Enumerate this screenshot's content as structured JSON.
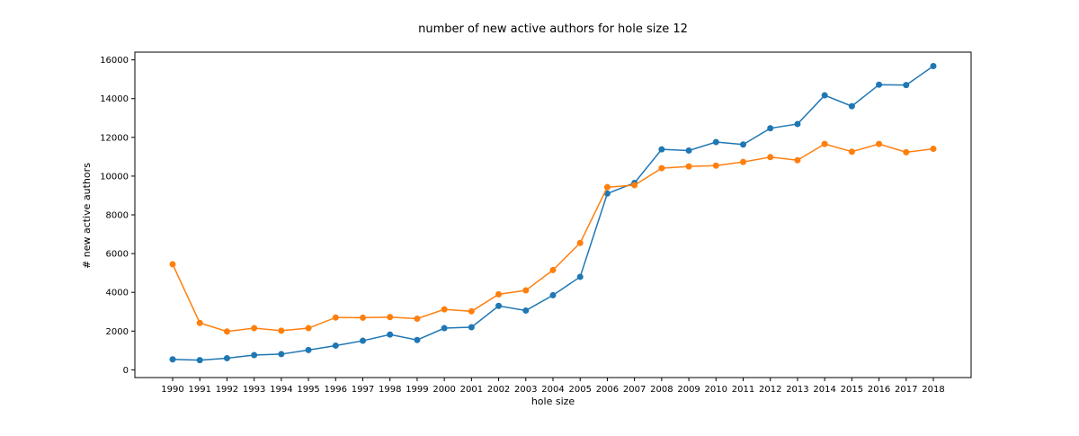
{
  "chart_data": {
    "type": "line",
    "title": "number of new active authors for hole size 12",
    "xlabel": "hole size",
    "ylabel": "# new active authors",
    "categories": [
      "1990",
      "1991",
      "1992",
      "1993",
      "1994",
      "1995",
      "1996",
      "1997",
      "1998",
      "1999",
      "2000",
      "2001",
      "2002",
      "2003",
      "2004",
      "2005",
      "2006",
      "2007",
      "2008",
      "2009",
      "2010",
      "2011",
      "2012",
      "2013",
      "2014",
      "2015",
      "2016",
      "2017",
      "2018"
    ],
    "yticks": [
      "0",
      "2000",
      "4000",
      "6000",
      "8000",
      "10000",
      "12000",
      "14000",
      "16000"
    ],
    "ylim": [
      -400,
      16400
    ],
    "grid": false,
    "series": [
      {
        "color": "#1f77b4",
        "values": [
          540,
          500,
          600,
          760,
          810,
          1020,
          1250,
          1500,
          1820,
          1540,
          2150,
          2200,
          3300,
          3060,
          3850,
          4800,
          9100,
          9650,
          11380,
          11320,
          11760,
          11630,
          12470,
          12690,
          14170,
          13610,
          14720,
          14700,
          15680
        ]
      },
      {
        "color": "#ff7f0e",
        "values": [
          5450,
          2420,
          1980,
          2150,
          2020,
          2150,
          2700,
          2690,
          2720,
          2640,
          3120,
          3020,
          3900,
          4100,
          5150,
          6550,
          9430,
          9530,
          10410,
          10500,
          10540,
          10730,
          10980,
          10820,
          11660,
          11260,
          11660,
          11230,
          11410
        ]
      }
    ]
  }
}
